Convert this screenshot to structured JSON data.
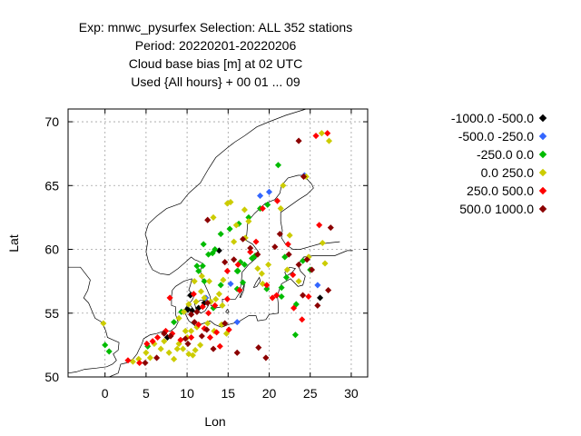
{
  "title": {
    "line1": "Exp: mnwc_pysurfex   Selection: ALL    352 stations",
    "line2": "Period: 20220201-20220206",
    "line3": "Cloud base bias [m] at  02 UTC",
    "line4": "Used {All hours} + 00 01 ... 09"
  },
  "axes": {
    "xlabel": "Lon",
    "ylabel": "Lat",
    "xlim": [
      -4.5,
      32
    ],
    "ylim": [
      50,
      71
    ],
    "xticks": [
      0,
      5,
      10,
      15,
      20,
      25,
      30
    ],
    "yticks": [
      50,
      55,
      60,
      65,
      70
    ],
    "grid": true
  },
  "legend": {
    "placement": "right",
    "entries": [
      {
        "label": "-1000.0 -500.0",
        "color": "#000000"
      },
      {
        "label": "-500.0 -250.0",
        "color": "#3366ff"
      },
      {
        "label": "-250.0 0.0",
        "color": "#00bb00"
      },
      {
        "label": "0.0 250.0",
        "color": "#cccc00"
      },
      {
        "label": "250.0 500.0",
        "color": "#ff0000"
      },
      {
        "label": "500.0 1000.0",
        "color": "#8b0000"
      }
    ]
  },
  "chart_data": {
    "type": "scatter",
    "series": [
      {
        "name": "-1000.0 -500.0",
        "points": [
          [
            10.1,
            55.3
          ],
          [
            10.6,
            55.2
          ],
          [
            12.1,
            55.8
          ],
          [
            7.6,
            53.1
          ],
          [
            13.9,
            59.9
          ],
          [
            26.2,
            56.2
          ],
          [
            10.4,
            56.4
          ],
          [
            11.4,
            55.4
          ]
        ]
      },
      {
        "name": "-500.0 -250.0",
        "points": [
          [
            18.9,
            64.2
          ],
          [
            20.0,
            64.5
          ],
          [
            24.3,
            65.8
          ],
          [
            16.1,
            54.3
          ],
          [
            15.3,
            57.3
          ],
          [
            25.9,
            57.2
          ],
          [
            12.3,
            56.2
          ]
        ]
      },
      {
        "name": "-250.0 0.0",
        "points": [
          [
            0.0,
            52.5
          ],
          [
            0.5,
            52.0
          ],
          [
            5.2,
            52.4
          ],
          [
            8.4,
            54.3
          ],
          [
            9.3,
            55.1
          ],
          [
            12.1,
            57.5
          ],
          [
            11.4,
            58.3
          ],
          [
            11.9,
            58.7
          ],
          [
            12.6,
            59.6
          ],
          [
            13.1,
            59.7
          ],
          [
            12.0,
            60.4
          ],
          [
            13.4,
            60.0
          ],
          [
            14.1,
            61.2
          ],
          [
            15.2,
            61.6
          ],
          [
            16.3,
            62.0
          ],
          [
            17.5,
            62.5
          ],
          [
            18.9,
            63.2
          ],
          [
            19.8,
            63.5
          ],
          [
            16.5,
            59.0
          ],
          [
            17.0,
            58.8
          ],
          [
            16.2,
            58.3
          ],
          [
            16.8,
            57.4
          ],
          [
            17.9,
            59.3
          ],
          [
            18.3,
            59.5
          ],
          [
            21.1,
            66.6
          ],
          [
            21.5,
            56.3
          ],
          [
            22.1,
            57.8
          ],
          [
            23.2,
            53.3
          ],
          [
            24.1,
            59.1
          ],
          [
            21.9,
            59.4
          ],
          [
            25.0,
            58.4
          ],
          [
            23.3,
            55.7
          ],
          [
            13.2,
            55.4
          ],
          [
            14.1,
            57.2
          ],
          [
            11.2,
            58.7
          ],
          [
            16.1,
            56.9
          ],
          [
            16.1,
            58.3
          ],
          [
            19.7,
            56.9
          ],
          [
            21.5,
            57.0
          ]
        ]
      },
      {
        "name": "0.0 250.0",
        "points": [
          [
            -0.2,
            54.2
          ],
          [
            3.4,
            51.2
          ],
          [
            4.1,
            51.4
          ],
          [
            5.0,
            51.9
          ],
          [
            5.5,
            51.5
          ],
          [
            6.0,
            52.6
          ],
          [
            6.8,
            52.2
          ],
          [
            7.2,
            52.8
          ],
          [
            7.8,
            51.9
          ],
          [
            8.4,
            51.4
          ],
          [
            8.8,
            52.2
          ],
          [
            9.0,
            52.6
          ],
          [
            9.5,
            52.2
          ],
          [
            10.2,
            51.8
          ],
          [
            10.7,
            51.7
          ],
          [
            11.0,
            52.1
          ],
          [
            11.6,
            52.5
          ],
          [
            10.0,
            53.1
          ],
          [
            9.8,
            53.6
          ],
          [
            10.5,
            53.6
          ],
          [
            11.2,
            53.9
          ],
          [
            12.5,
            54.2
          ],
          [
            13.3,
            53.6
          ],
          [
            14.2,
            54.1
          ],
          [
            14.8,
            53.4
          ],
          [
            9.0,
            54.6
          ],
          [
            9.6,
            55.1
          ],
          [
            10.2,
            55.7
          ],
          [
            11.7,
            56.7
          ],
          [
            12.1,
            56.2
          ],
          [
            13.5,
            56.1
          ],
          [
            13.9,
            56.5
          ],
          [
            14.3,
            55.6
          ],
          [
            12.9,
            55.9
          ],
          [
            11.1,
            55.9
          ],
          [
            10.9,
            57.5
          ],
          [
            11.8,
            57.9
          ],
          [
            12.7,
            57.5
          ],
          [
            14.9,
            63.6
          ],
          [
            15.3,
            63.7
          ],
          [
            17.0,
            63.1
          ],
          [
            17.5,
            62.2
          ],
          [
            16.0,
            61.9
          ],
          [
            17.1,
            60.9
          ],
          [
            15.7,
            60.6
          ],
          [
            18.6,
            58.5
          ],
          [
            19.2,
            57.3
          ],
          [
            19.1,
            58.1
          ],
          [
            19.9,
            58.8
          ],
          [
            21.7,
            65.0
          ],
          [
            24.5,
            65.7
          ],
          [
            27.3,
            68.5
          ],
          [
            26.4,
            69.1
          ],
          [
            22.2,
            58.4
          ],
          [
            23.6,
            57.5
          ],
          [
            24.8,
            59.4
          ],
          [
            26.8,
            58.9
          ],
          [
            26.5,
            60.5
          ],
          [
            22.5,
            61.1
          ],
          [
            21.4,
            63.2
          ],
          [
            14.4,
            57.6
          ],
          [
            13.2,
            62.5
          ]
        ]
      },
      {
        "name": "250.0 500.0",
        "points": [
          [
            2.8,
            51.3
          ],
          [
            4.2,
            51.1
          ],
          [
            5.1,
            52.6
          ],
          [
            5.8,
            52.8
          ],
          [
            6.4,
            53.1
          ],
          [
            7.4,
            53.6
          ],
          [
            8.2,
            53.4
          ],
          [
            9.2,
            52.9
          ],
          [
            10.5,
            53.1
          ],
          [
            11.4,
            54.1
          ],
          [
            12.1,
            53.8
          ],
          [
            12.8,
            53.1
          ],
          [
            13.6,
            53.5
          ],
          [
            14.0,
            52.4
          ],
          [
            15.1,
            53.7
          ],
          [
            13.4,
            55.6
          ],
          [
            12.6,
            55.0
          ],
          [
            11.9,
            55.5
          ],
          [
            14.9,
            56.1
          ],
          [
            14.9,
            58.3
          ],
          [
            16.4,
            56.8
          ],
          [
            16.2,
            58.8
          ],
          [
            17.7,
            59.8
          ],
          [
            18.4,
            60.6
          ],
          [
            19.2,
            63.2
          ],
          [
            21.0,
            63.8
          ],
          [
            22.3,
            60.4
          ],
          [
            23.0,
            55.4
          ],
          [
            24.0,
            54.5
          ],
          [
            24.8,
            56.3
          ],
          [
            26.1,
            61.9
          ],
          [
            25.7,
            68.9
          ],
          [
            27.1,
            69.1
          ],
          [
            22.9,
            58.0
          ],
          [
            20.4,
            56.2
          ],
          [
            19.7,
            57.2
          ],
          [
            20.9,
            56.4
          ],
          [
            10.8,
            56.5
          ],
          [
            7.9,
            56.2
          ]
        ]
      },
      {
        "name": "500.0 1000.0",
        "points": [
          [
            4.9,
            51.1
          ],
          [
            6.3,
            51.5
          ],
          [
            7.2,
            53.4
          ],
          [
            8.0,
            53.2
          ],
          [
            9.8,
            53.0
          ],
          [
            10.1,
            52.6
          ],
          [
            10.9,
            54.3
          ],
          [
            11.8,
            53.2
          ],
          [
            12.4,
            53.7
          ],
          [
            13.2,
            52.2
          ],
          [
            14.6,
            54.2
          ],
          [
            16.1,
            51.9
          ],
          [
            18.7,
            52.3
          ],
          [
            19.6,
            51.5
          ],
          [
            12.5,
            62.3
          ],
          [
            14.6,
            59.0
          ],
          [
            15.7,
            59.2
          ],
          [
            16.8,
            60.8
          ],
          [
            17.7,
            60.1
          ],
          [
            18.6,
            59.6
          ],
          [
            20.7,
            60.2
          ],
          [
            22.4,
            59.6
          ],
          [
            23.6,
            58.8
          ],
          [
            24.6,
            59.2
          ],
          [
            25.2,
            58.4
          ],
          [
            27.2,
            56.8
          ],
          [
            25.9,
            55.6
          ],
          [
            24.1,
            56.4
          ],
          [
            23.6,
            68.5
          ],
          [
            24.2,
            65.7
          ],
          [
            27.5,
            61.7
          ],
          [
            21.3,
            61.2
          ],
          [
            12.5,
            55.8
          ],
          [
            10.5,
            54.9
          ],
          [
            11.2,
            55.1
          ]
        ]
      }
    ]
  }
}
